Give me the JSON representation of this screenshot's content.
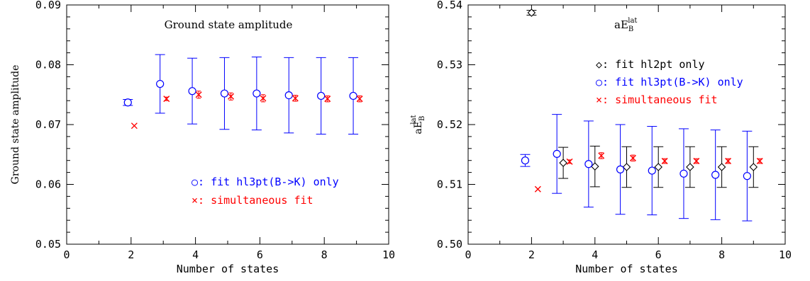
{
  "chart_data": [
    {
      "type": "scatter",
      "title": "Ground state amplitude",
      "xlabel": "Number of states",
      "ylabel": "Ground state amplitude",
      "xlim": [
        0,
        10
      ],
      "ylim": [
        0.05,
        0.09
      ],
      "xticks": [
        "0",
        "2",
        "4",
        "6",
        "8",
        "10"
      ],
      "yticks": [
        "0.05",
        "0.06",
        "0.07",
        "0.08",
        "0.09"
      ],
      "legend": "bottom-right",
      "series": [
        {
          "name": "fit hl3pt(B->K) only",
          "color": "#0000ff",
          "marker": "circle",
          "x": [
            1.9,
            2.9,
            3.9,
            4.9,
            5.9,
            6.9,
            7.9,
            8.9
          ],
          "y": [
            0.0737,
            0.0768,
            0.0756,
            0.0752,
            0.0752,
            0.0749,
            0.0748,
            0.0748
          ],
          "err": [
            0.0005,
            0.0049,
            0.0055,
            0.006,
            0.0061,
            0.0063,
            0.0064,
            0.0064
          ]
        },
        {
          "name": "simultaneous fit",
          "color": "#ff0000",
          "marker": "cross",
          "x": [
            2.1,
            3.1,
            4.1,
            5.1,
            6.1,
            7.1,
            8.1,
            9.1
          ],
          "y": [
            0.0698,
            0.0743,
            0.075,
            0.0747,
            0.0744,
            0.0744,
            0.0743,
            0.0743
          ],
          "err": [
            0,
            0.0003,
            0.0006,
            0.0006,
            0.0006,
            0.0005,
            0.0005,
            0.0005
          ]
        }
      ]
    },
    {
      "type": "scatter",
      "title": "aE_B^lat",
      "title_parts": [
        "aE",
        "B",
        "lat"
      ],
      "xlabel": "Number of states",
      "ylabel": "aE_B^lat",
      "ylabel_parts": [
        "aE",
        "B",
        "lat"
      ],
      "xlim": [
        0,
        10
      ],
      "ylim": [
        0.5,
        0.54
      ],
      "xticks": [
        "0",
        "2",
        "4",
        "6",
        "8",
        "10"
      ],
      "yticks": [
        "0.50",
        "0.51",
        "0.52",
        "0.53",
        "0.54"
      ],
      "legend": "top-right",
      "series": [
        {
          "name": "fit hl2pt only",
          "color": "#000000",
          "marker": "diamond",
          "x": [
            2.0,
            3.0,
            4.0,
            5.0,
            6.0,
            7.0,
            8.0,
            9.0
          ],
          "y": [
            0.5387,
            0.5136,
            0.513,
            0.5129,
            0.5129,
            0.5129,
            0.5129,
            0.5129
          ],
          "err": [
            0.0004,
            0.0026,
            0.0034,
            0.0034,
            0.0034,
            0.0034,
            0.0034,
            0.0034
          ]
        },
        {
          "name": "fit hl3pt(B->K) only",
          "color": "#0000ff",
          "marker": "circle",
          "x": [
            1.8,
            2.8,
            3.8,
            4.8,
            5.8,
            6.8,
            7.8,
            8.8
          ],
          "y": [
            0.514,
            0.5151,
            0.5134,
            0.5125,
            0.5123,
            0.5118,
            0.5116,
            0.5114
          ],
          "err": [
            0.001,
            0.0066,
            0.0072,
            0.0075,
            0.0074,
            0.0075,
            0.0075,
            0.0075
          ]
        },
        {
          "name": "simultaneous fit",
          "color": "#ff0000",
          "marker": "cross",
          "x": [
            2.2,
            3.2,
            4.2,
            5.2,
            6.2,
            7.2,
            8.2,
            9.2
          ],
          "y": [
            0.5092,
            0.5138,
            0.5148,
            0.5144,
            0.5139,
            0.5139,
            0.5139,
            0.5139
          ],
          "err": [
            0,
            0.0003,
            0.0005,
            0.0005,
            0.0004,
            0.0004,
            0.0004,
            0.0004
          ]
        }
      ]
    }
  ],
  "legends": [
    [
      {
        "symbol": "○:",
        "label": "fit hl3pt(B->K) only",
        "color": "#0000ff"
      },
      {
        "symbol": "×:",
        "label": "simultaneous fit",
        "color": "#ff0000"
      }
    ],
    [
      {
        "symbol": "◇:",
        "label": "fit hl2pt only",
        "color": "#000000"
      },
      {
        "symbol": "○:",
        "label": "fit hl3pt(B->K) only",
        "color": "#0000ff"
      },
      {
        "symbol": "×:",
        "label": "simultaneous fit",
        "color": "#ff0000"
      }
    ]
  ]
}
